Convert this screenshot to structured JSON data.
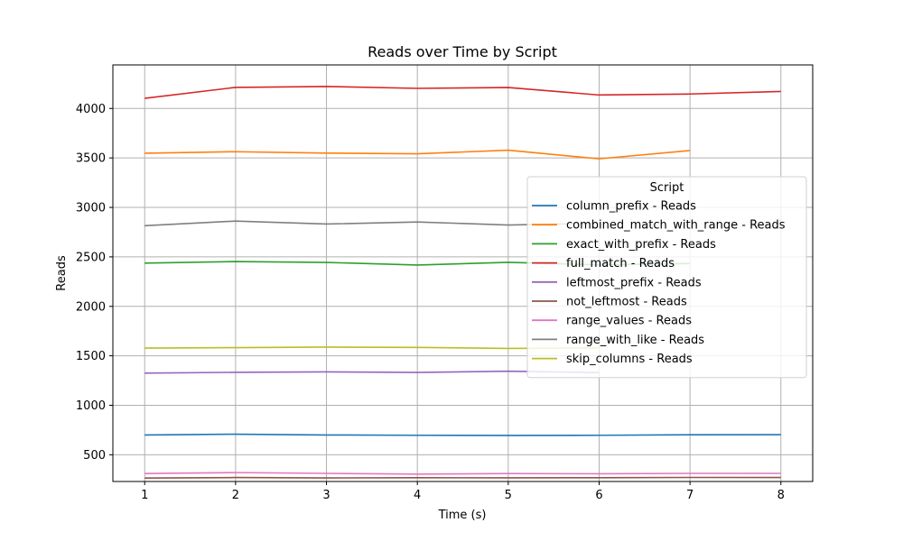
{
  "chart_data": {
    "type": "line",
    "title": "Reads over Time by Script",
    "xlabel": "Time (s)",
    "ylabel": "Reads",
    "xlim": [
      0.65,
      8.35
    ],
    "ylim": [
      230,
      4440
    ],
    "xticks": [
      1,
      2,
      3,
      4,
      5,
      6,
      7,
      8
    ],
    "yticks": [
      500,
      1000,
      1500,
      2000,
      2500,
      3000,
      3500,
      4000
    ],
    "grid": true,
    "legend_title": "Script",
    "legend_position": "center-right",
    "series": [
      {
        "name": "column_prefix - Reads",
        "color": "#1f77b4",
        "x": [
          1,
          2,
          3,
          4,
          5,
          6,
          7,
          8
        ],
        "values": [
          700,
          708,
          700,
          697,
          695,
          697,
          702,
          703
        ]
      },
      {
        "name": "combined_match_with_range - Reads",
        "color": "#ff7f0e",
        "x": [
          1,
          2,
          3,
          4,
          5,
          6,
          7
        ],
        "values": [
          3548,
          3563,
          3549,
          3542,
          3578,
          3491,
          3575
        ]
      },
      {
        "name": "exact_with_prefix - Reads",
        "color": "#2ca02c",
        "x": [
          1,
          2,
          3,
          4,
          5,
          6,
          7
        ],
        "values": [
          2437,
          2453,
          2444,
          2418,
          2445,
          2420,
          2433
        ]
      },
      {
        "name": "full_match - Reads",
        "color": "#d62728",
        "x": [
          1,
          2,
          3,
          4,
          5,
          6,
          7,
          8
        ],
        "values": [
          4102,
          4213,
          4222,
          4203,
          4212,
          4136,
          4146,
          4172
        ]
      },
      {
        "name": "leftmost_prefix - Reads",
        "color": "#9467bd",
        "x": [
          1,
          2,
          3,
          4,
          5,
          6
        ],
        "values": [
          1325,
          1333,
          1338,
          1332,
          1345,
          1330
        ]
      },
      {
        "name": "not_leftmost - Reads",
        "color": "#8c564b",
        "x": [
          1,
          2,
          3,
          4,
          5,
          6,
          7,
          8
        ],
        "values": [
          265,
          270,
          266,
          268,
          267,
          268,
          271,
          270
        ]
      },
      {
        "name": "range_values - Reads",
        "color": "#e377c2",
        "x": [
          1,
          2,
          3,
          4,
          5,
          6,
          7,
          8
        ],
        "values": [
          310,
          320,
          312,
          305,
          310,
          308,
          312,
          312
        ]
      },
      {
        "name": "range_with_like - Reads",
        "color": "#7f7f7f",
        "x": [
          1,
          2,
          3,
          4,
          5,
          6
        ],
        "values": [
          2815,
          2862,
          2832,
          2853,
          2822,
          2840
        ]
      },
      {
        "name": "skip_columns - Reads",
        "color": "#bcbd22",
        "x": [
          1,
          2,
          3,
          4,
          5,
          6
        ],
        "values": [
          1578,
          1583,
          1588,
          1585,
          1575,
          1580
        ]
      }
    ]
  }
}
